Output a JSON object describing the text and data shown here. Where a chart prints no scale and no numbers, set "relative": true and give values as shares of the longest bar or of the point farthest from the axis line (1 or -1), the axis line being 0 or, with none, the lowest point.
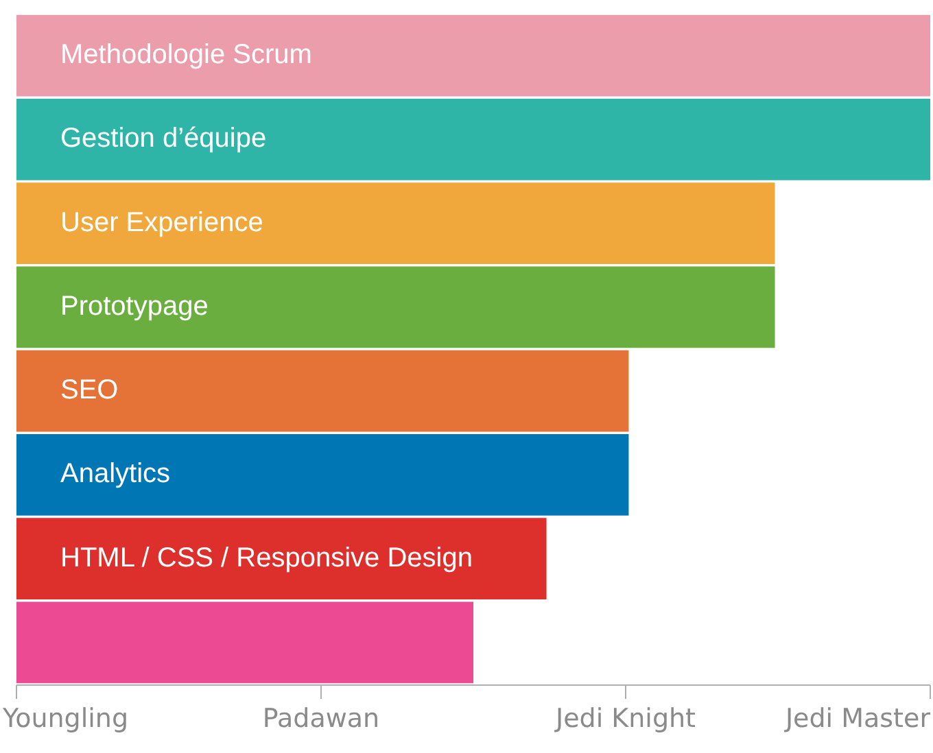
{
  "chart_data": {
    "type": "bar",
    "orientation": "horizontal",
    "relative": true,
    "categories": [
      "Methodologie Scrum",
      "Gestion d’équipe",
      "User Experience",
      "Prototypage",
      "SEO",
      "Analytics",
      "HTML / CSS / Responsive Design",
      null
    ],
    "values": [
      1,
      1,
      0.83,
      0.83,
      0.67,
      0.67,
      0.58,
      0.5
    ],
    "colors": [
      "#ec9dab",
      "#2fb5a8",
      "#f0a83d",
      "#6aae3f",
      "#e57338",
      "#0077b5",
      "#dd302c",
      "#ec4a92"
    ],
    "annotations": [
      "Youngling",
      "Padawan",
      "Jedi Knight",
      "Jedi Master"
    ],
    "legend": false
  }
}
